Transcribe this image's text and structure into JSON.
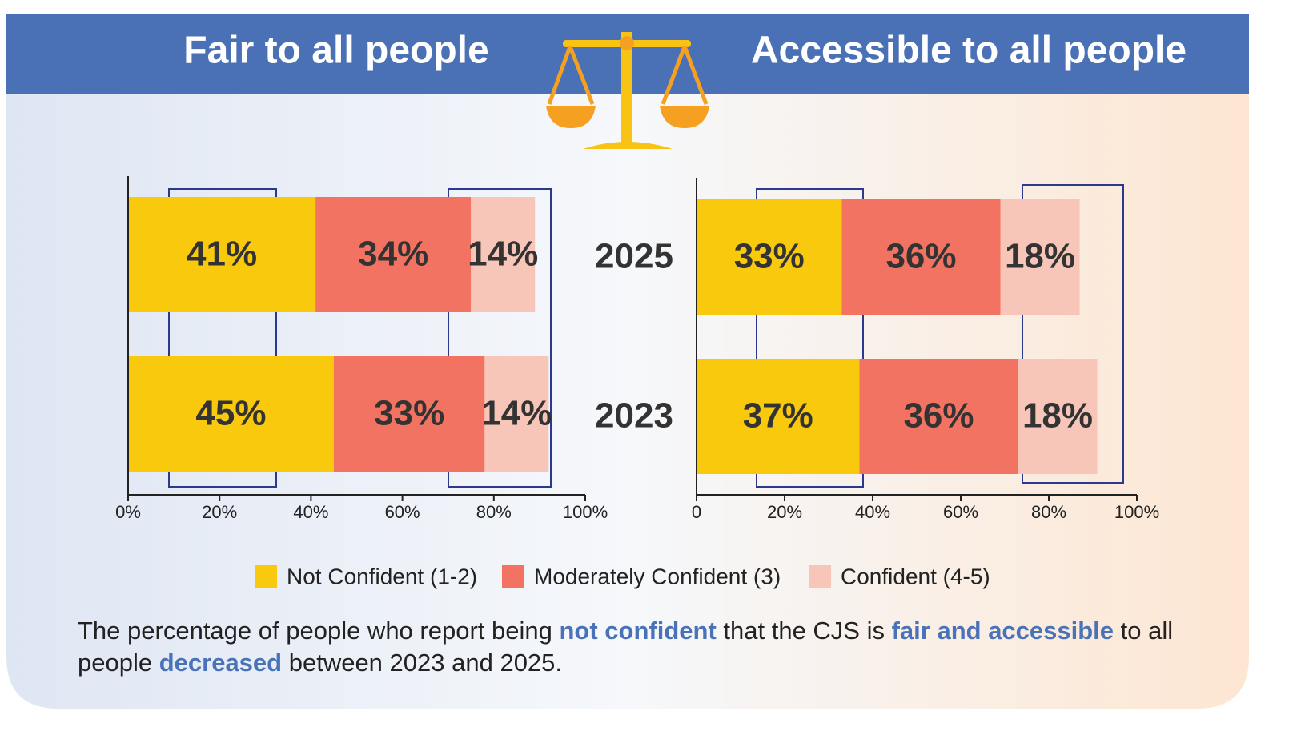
{
  "chart_data": [
    {
      "type": "bar",
      "orientation": "horizontal",
      "stacked": true,
      "title": "Fair to all people",
      "categories": [
        "2025",
        "2023"
      ],
      "series": [
        {
          "name": "Not Confident (1-2)",
          "color": "#f8c90c",
          "values": [
            41,
            45
          ],
          "value_labels": [
            "41%",
            "45%"
          ]
        },
        {
          "name": "Moderately Confident (3)",
          "color": "#f37362",
          "values": [
            34,
            33
          ],
          "value_labels": [
            "34%",
            "33%"
          ]
        },
        {
          "name": "Confident (4-5)",
          "color": "#f7c6b9",
          "values": [
            14,
            14
          ],
          "value_labels": [
            "14%",
            "14%"
          ]
        }
      ],
      "xlim": [
        0,
        100
      ],
      "xticks": [
        {
          "value": 0,
          "label": "0%"
        },
        {
          "value": 20,
          "label": "20%"
        },
        {
          "value": 40,
          "label": "40%"
        },
        {
          "value": 60,
          "label": "60%"
        },
        {
          "value": 80,
          "label": "80%"
        },
        {
          "value": 100,
          "label": "100%"
        }
      ]
    },
    {
      "type": "bar",
      "orientation": "horizontal",
      "stacked": true,
      "title": "Accessible to all people",
      "series": [
        {
          "color": "#f8c90c",
          "values": [
            33,
            37
          ],
          "value_labels": [
            "33%",
            "37%"
          ]
        },
        {
          "color": "#f37362",
          "values": [
            36,
            36
          ],
          "value_labels": [
            "36%",
            "36%"
          ]
        },
        {
          "color": "#f7c6b9",
          "values": [
            18,
            18
          ],
          "value_labels": [
            "18%",
            "18%"
          ]
        }
      ],
      "xlim": [
        0,
        100
      ],
      "xticks": [
        0,
        {
          "value": 20,
          "label": "20%"
        },
        {
          "value": 40,
          "label": "40%"
        },
        {
          "value": 60,
          "label": "60%"
        },
        {
          "value": 80,
          "label": "80%"
        },
        {
          "value": 100,
          "label": "100%"
        }
      ]
    }
  ],
  "note": [
    {
      "text": "The percentage of people who report being ",
      "highlight": false
    },
    {
      "text": "not confident",
      "highlight": true
    },
    {
      "text": " that the CJS is ",
      "highlight": false
    },
    {
      "text": "fair and accessible",
      "highlight": true
    },
    {
      "text": " to all people ",
      "highlight": false
    },
    {
      "text": "decreased",
      "highlight": true
    },
    {
      "text": " between 2023 and 2025.",
      "highlight": false
    }
  ]
}
